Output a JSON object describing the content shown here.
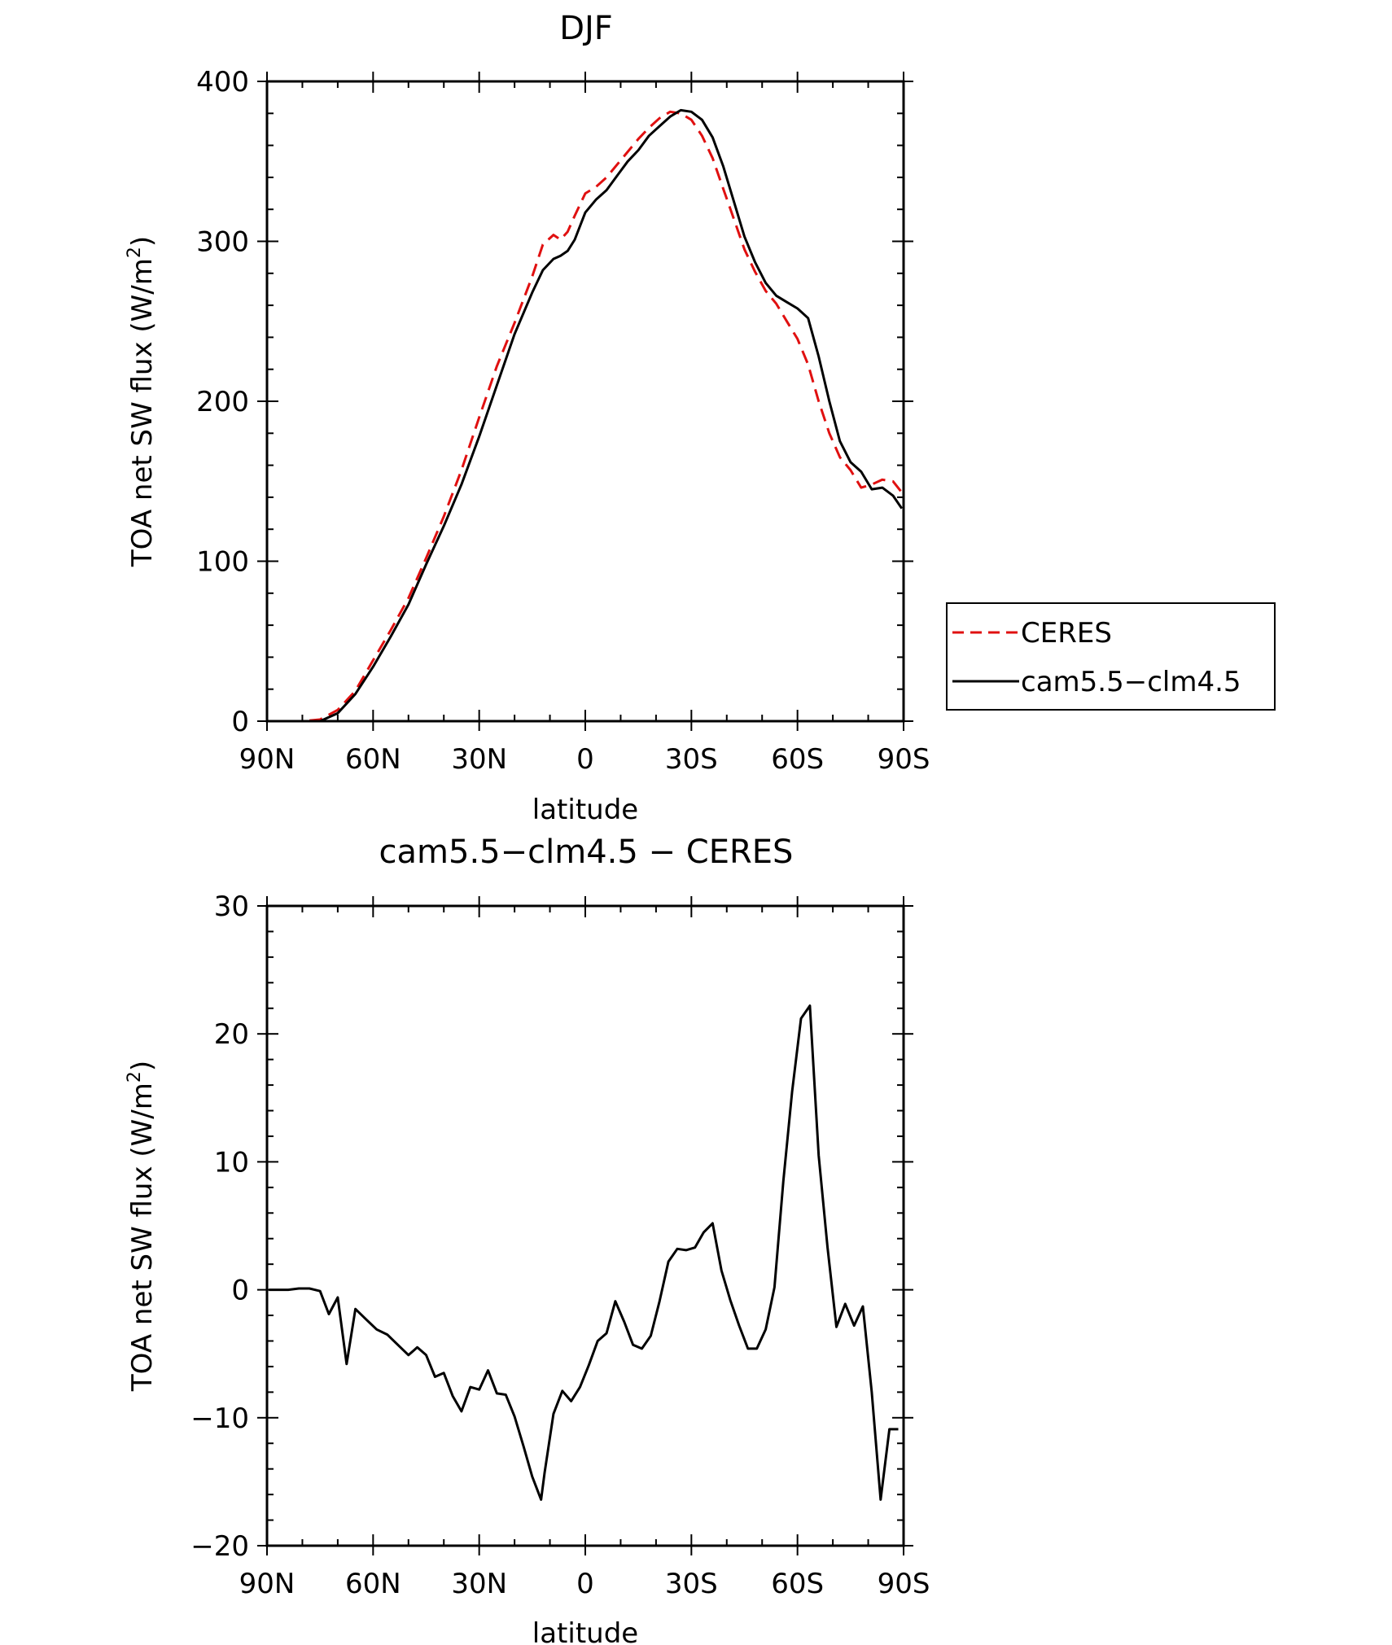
{
  "chart_data": [
    {
      "type": "line",
      "title": "DJF",
      "xlabel": "latitude",
      "ylabel": "TOA net SW flux (W/m²)",
      "ylabel_main": "TOA net SW flux (W/m",
      "ylabel_sup": "2",
      "ylabel_close": ")",
      "xlim": [
        -90,
        90
      ],
      "ylim": [
        0,
        400
      ],
      "xticks": [
        {
          "value": -90,
          "label": "90N"
        },
        {
          "value": -60,
          "label": "60N"
        },
        {
          "value": -30,
          "label": "30N"
        },
        {
          "value": 0,
          "label": "0"
        },
        {
          "value": 30,
          "label": "30S"
        },
        {
          "value": 60,
          "label": "60S"
        },
        {
          "value": 90,
          "label": "90S"
        }
      ],
      "yticks": [
        {
          "value": 0,
          "label": "0"
        },
        {
          "value": 100,
          "label": "100"
        },
        {
          "value": 200,
          "label": "200"
        },
        {
          "value": 300,
          "label": "300"
        },
        {
          "value": 400,
          "label": "400"
        }
      ],
      "legend_position": "right",
      "series": [
        {
          "name": "CERES",
          "color": "#e01010",
          "dash": "dashed",
          "x": [
            -89.5,
            -85,
            -80,
            -75,
            -70,
            -65,
            -60,
            -55,
            -50,
            -45,
            -40,
            -35,
            -30,
            -25,
            -20,
            -15,
            -12,
            -9,
            -7,
            -5,
            -3,
            0,
            3,
            6,
            9,
            12,
            15,
            18,
            21,
            24,
            27,
            30,
            33,
            36,
            39,
            42,
            45,
            48,
            51,
            54,
            57,
            60,
            63,
            66,
            69,
            72,
            75,
            78,
            81,
            84,
            87,
            89.5
          ],
          "y": [
            0,
            0,
            0,
            1,
            7,
            19,
            38,
            57,
            77,
            102,
            128,
            157,
            190,
            222,
            249,
            278,
            298,
            304,
            301,
            306,
            316,
            330,
            334,
            340,
            348,
            356,
            364,
            371,
            377,
            381,
            380,
            376,
            366,
            352,
            333,
            314,
            295,
            281,
            269,
            261,
            250,
            239,
            223,
            200,
            180,
            165,
            157,
            146,
            148,
            151,
            150,
            143
          ]
        },
        {
          "name": "cam5.5−clm4.5",
          "color": "#000000",
          "dash": "solid",
          "x": [
            -89.5,
            -85,
            -80,
            -75,
            -70,
            -65,
            -60,
            -55,
            -50,
            -45,
            -40,
            -35,
            -30,
            -25,
            -20,
            -15,
            -12,
            -9,
            -7,
            -5,
            -3,
            0,
            3,
            6,
            9,
            12,
            15,
            18,
            21,
            24,
            27,
            30,
            33,
            36,
            39,
            42,
            45,
            48,
            51,
            54,
            57,
            60,
            63,
            66,
            69,
            72,
            75,
            78,
            81,
            84,
            87,
            89.5
          ],
          "y": [
            0,
            0,
            0,
            0,
            5,
            17,
            34,
            53,
            73,
            98,
            122,
            148,
            178,
            210,
            242,
            268,
            282,
            289,
            291,
            294,
            301,
            318,
            326,
            332,
            341,
            350,
            357,
            366,
            372,
            378,
            382,
            381,
            376,
            365,
            347,
            325,
            303,
            287,
            274,
            266,
            262,
            258,
            252,
            228,
            200,
            175,
            162,
            156,
            145,
            146,
            141,
            133
          ]
        }
      ]
    },
    {
      "type": "line",
      "title": "cam5.5−clm4.5 − CERES",
      "xlabel": "latitude",
      "ylabel": "TOA net SW flux (W/m²)",
      "ylabel_main": "TOA net SW flux (W/m",
      "ylabel_sup": "2",
      "ylabel_close": ")",
      "xlim": [
        -90,
        90
      ],
      "ylim": [
        -20,
        30
      ],
      "xticks": [
        {
          "value": -90,
          "label": "90N"
        },
        {
          "value": -60,
          "label": "60N"
        },
        {
          "value": -30,
          "label": "30N"
        },
        {
          "value": 0,
          "label": "0"
        },
        {
          "value": 30,
          "label": "30S"
        },
        {
          "value": 60,
          "label": "60S"
        },
        {
          "value": 90,
          "label": "90S"
        }
      ],
      "yticks": [
        {
          "value": -20,
          "label": "−20"
        },
        {
          "value": -10,
          "label": "−10"
        },
        {
          "value": 0,
          "label": "0"
        },
        {
          "value": 10,
          "label": "10"
        },
        {
          "value": 20,
          "label": "20"
        },
        {
          "value": 30,
          "label": "30"
        }
      ],
      "series": [
        {
          "name": "",
          "color": "#000000",
          "dash": "solid",
          "x": [
            -89.5,
            -87,
            -84,
            -81,
            -78,
            -75,
            -72.5,
            -70,
            -67.5,
            -65,
            -62,
            -59,
            -56,
            -53,
            -50,
            -47.5,
            -45,
            -42.5,
            -40,
            -37.5,
            -35,
            -32.5,
            -30,
            -27.5,
            -25,
            -22.5,
            -20,
            -17.5,
            -15,
            -12.5,
            -11.5,
            -9,
            -6.5,
            -4,
            -1.5,
            1,
            3.5,
            6,
            8.5,
            11,
            13.5,
            16,
            18.5,
            21,
            23.5,
            26,
            28.5,
            31,
            33.5,
            36,
            38.5,
            41,
            43.5,
            46,
            48.5,
            51,
            53.5,
            56,
            58.5,
            61,
            63.5,
            66,
            68.5,
            71,
            73.5,
            76,
            78.5,
            81,
            83.5,
            86,
            88.5
          ],
          "y": [
            0,
            0,
            0,
            0.1,
            0.1,
            -0.1,
            -1.9,
            -0.6,
            -5.8,
            -1.5,
            -2.3,
            -3.1,
            -3.5,
            -4.3,
            -5.1,
            -4.5,
            -5.1,
            -6.8,
            -6.5,
            -8.3,
            -9.5,
            -7.6,
            -7.8,
            -6.3,
            -8.1,
            -8.2,
            -9.9,
            -12.2,
            -14.6,
            -16.4,
            -14.3,
            -9.7,
            -7.9,
            -8.7,
            -7.6,
            -5.9,
            -4,
            -3.4,
            -0.9,
            -2.5,
            -4.3,
            -4.6,
            -3.6,
            -0.9,
            2.2,
            3.2,
            3.1,
            3.3,
            4.5,
            5.2,
            1.5,
            -0.8,
            -2.8,
            -4.6,
            -4.6,
            -3.1,
            0.2,
            8.5,
            15.5,
            21.2,
            22.2,
            10.5,
            3.3,
            -2.9,
            -1.1,
            -2.8,
            -1.3,
            -8,
            -16.4,
            -10.9,
            -10.9
          ]
        }
      ]
    }
  ]
}
